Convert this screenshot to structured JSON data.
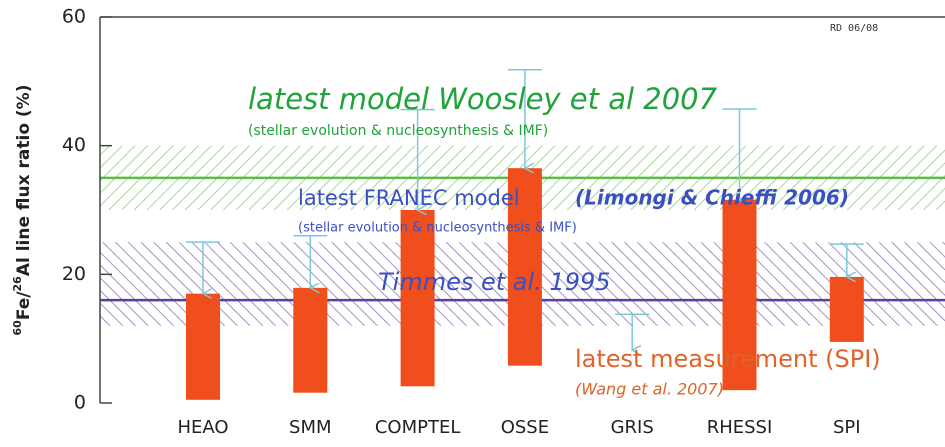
{
  "chart_data": {
    "type": "range_bar",
    "ylabel_parts": [
      "60",
      "Fe/",
      "26",
      "Al line flux ratio (%)"
    ],
    "categories": [
      "HEAO",
      "SMM",
      "COMPTEL",
      "OSSE",
      "GRIS",
      "RHESSI",
      "SPI"
    ],
    "lows": [
      0.5,
      1.6,
      2.6,
      5.8,
      null,
      2,
      9.5
    ],
    "highs": [
      17,
      17.9,
      30,
      36.5,
      null,
      31.6,
      19.6
    ],
    "upper_limits": [
      25,
      26,
      45.6,
      51.8,
      13.8,
      45.7,
      24.7
    ],
    "bar_color": "#f04e1c",
    "limit_color": "#7ec8d8",
    "ylim": [
      0,
      60
    ],
    "yticks": [
      0,
      20,
      40,
      60
    ],
    "bands": [
      {
        "range": [
          30,
          40
        ],
        "line": 35,
        "color": "#5dbb46"
      },
      {
        "range": [
          12,
          25
        ],
        "line": 16,
        "color": "#5a3fa0"
      }
    ],
    "annotations": [
      {
        "text": "RD 06/08",
        "color": "#333333"
      },
      {
        "text": "latest model Woosley et al 2007",
        "color": "#1fa33a"
      },
      {
        "text": "(stellar evolution & nucleosynthesis & IMF)",
        "color": "#1fa33a"
      },
      {
        "text": "latest FRANEC model",
        "color": "#3a4fc0"
      },
      {
        "text": "(Limongi & Chieffi 2006)",
        "color": "#3a4fc0"
      },
      {
        "text": "(stellar evolution & nucleosynthesis & IMF)",
        "color": "#3a4fc0"
      },
      {
        "text": "Timmes et al. 1995",
        "color": "#3a4fc0"
      },
      {
        "text": "latest measurement (SPI)",
        "color": "#e0632a"
      },
      {
        "text": "(Wang et al. 2007)",
        "color": "#e0632a"
      }
    ]
  }
}
